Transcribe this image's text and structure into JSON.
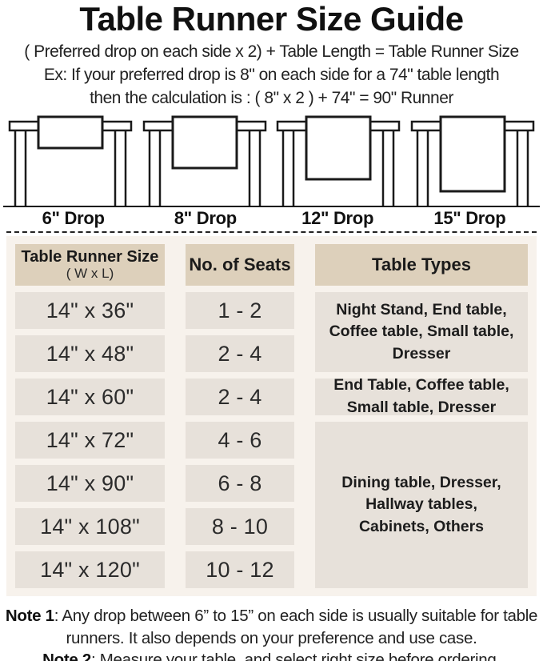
{
  "title": "Table Runner Size Guide",
  "intro": {
    "formula": "( Preferred drop on each side x 2) + Table Length = Table Runner Size",
    "example_line1": "Ex: If your preferred drop is 8\" on each side for a 74\" table length",
    "example_line2": "then the calculation is : ( 8\" x 2 ) + 74\" = 90\" Runner"
  },
  "diagrams": [
    {
      "label": "6\" Drop",
      "runner_height": 39
    },
    {
      "label": "8\" Drop",
      "runner_height": 64
    },
    {
      "label": "12\" Drop",
      "runner_height": 78
    },
    {
      "label": "15\" Drop",
      "runner_height": 93
    }
  ],
  "size_table": {
    "headers": {
      "size_title": "Table Runner Size",
      "size_sub": "( W x L)",
      "seats": "No. of Seats",
      "types": "Table Types"
    },
    "rows": [
      {
        "size": "14\" x 36\"",
        "seats": "1 - 2"
      },
      {
        "size": "14\" x 48\"",
        "seats": "2 - 4"
      },
      {
        "size": "14\" x 60\"",
        "seats": "2 - 4"
      },
      {
        "size": "14\" x 72\"",
        "seats": "4 - 6"
      },
      {
        "size": "14\" x 90\"",
        "seats": "6 - 8"
      },
      {
        "size": "14\" x 108\"",
        "seats": "8 - 10"
      },
      {
        "size": "14\" x 120\"",
        "seats": "10 - 12"
      }
    ],
    "type_groups": [
      {
        "text": "Night Stand, End table, Coffee table, Small table, Dresser",
        "row_span": 2
      },
      {
        "text": "End Table, Coffee table, Small table, Dresser",
        "row_span": 1
      },
      {
        "text": "Dining table, Dresser, Hallway tables, Cabinets, Others",
        "row_span": 4
      }
    ]
  },
  "notes": [
    {
      "label": "Note 1",
      "text": ": Any drop between 6” to 15” on each side is usually suitable for table runners. It also depends on your preference and use case."
    },
    {
      "label": "Note 2",
      "text": ": Measure your table, and select right size before ordering."
    }
  ],
  "colors": {
    "section_bg": "#f7f2ec",
    "header_cell_bg": "#ddd0bb",
    "data_cell_bg": "#e7e1da",
    "text": "#1e1e1e"
  }
}
